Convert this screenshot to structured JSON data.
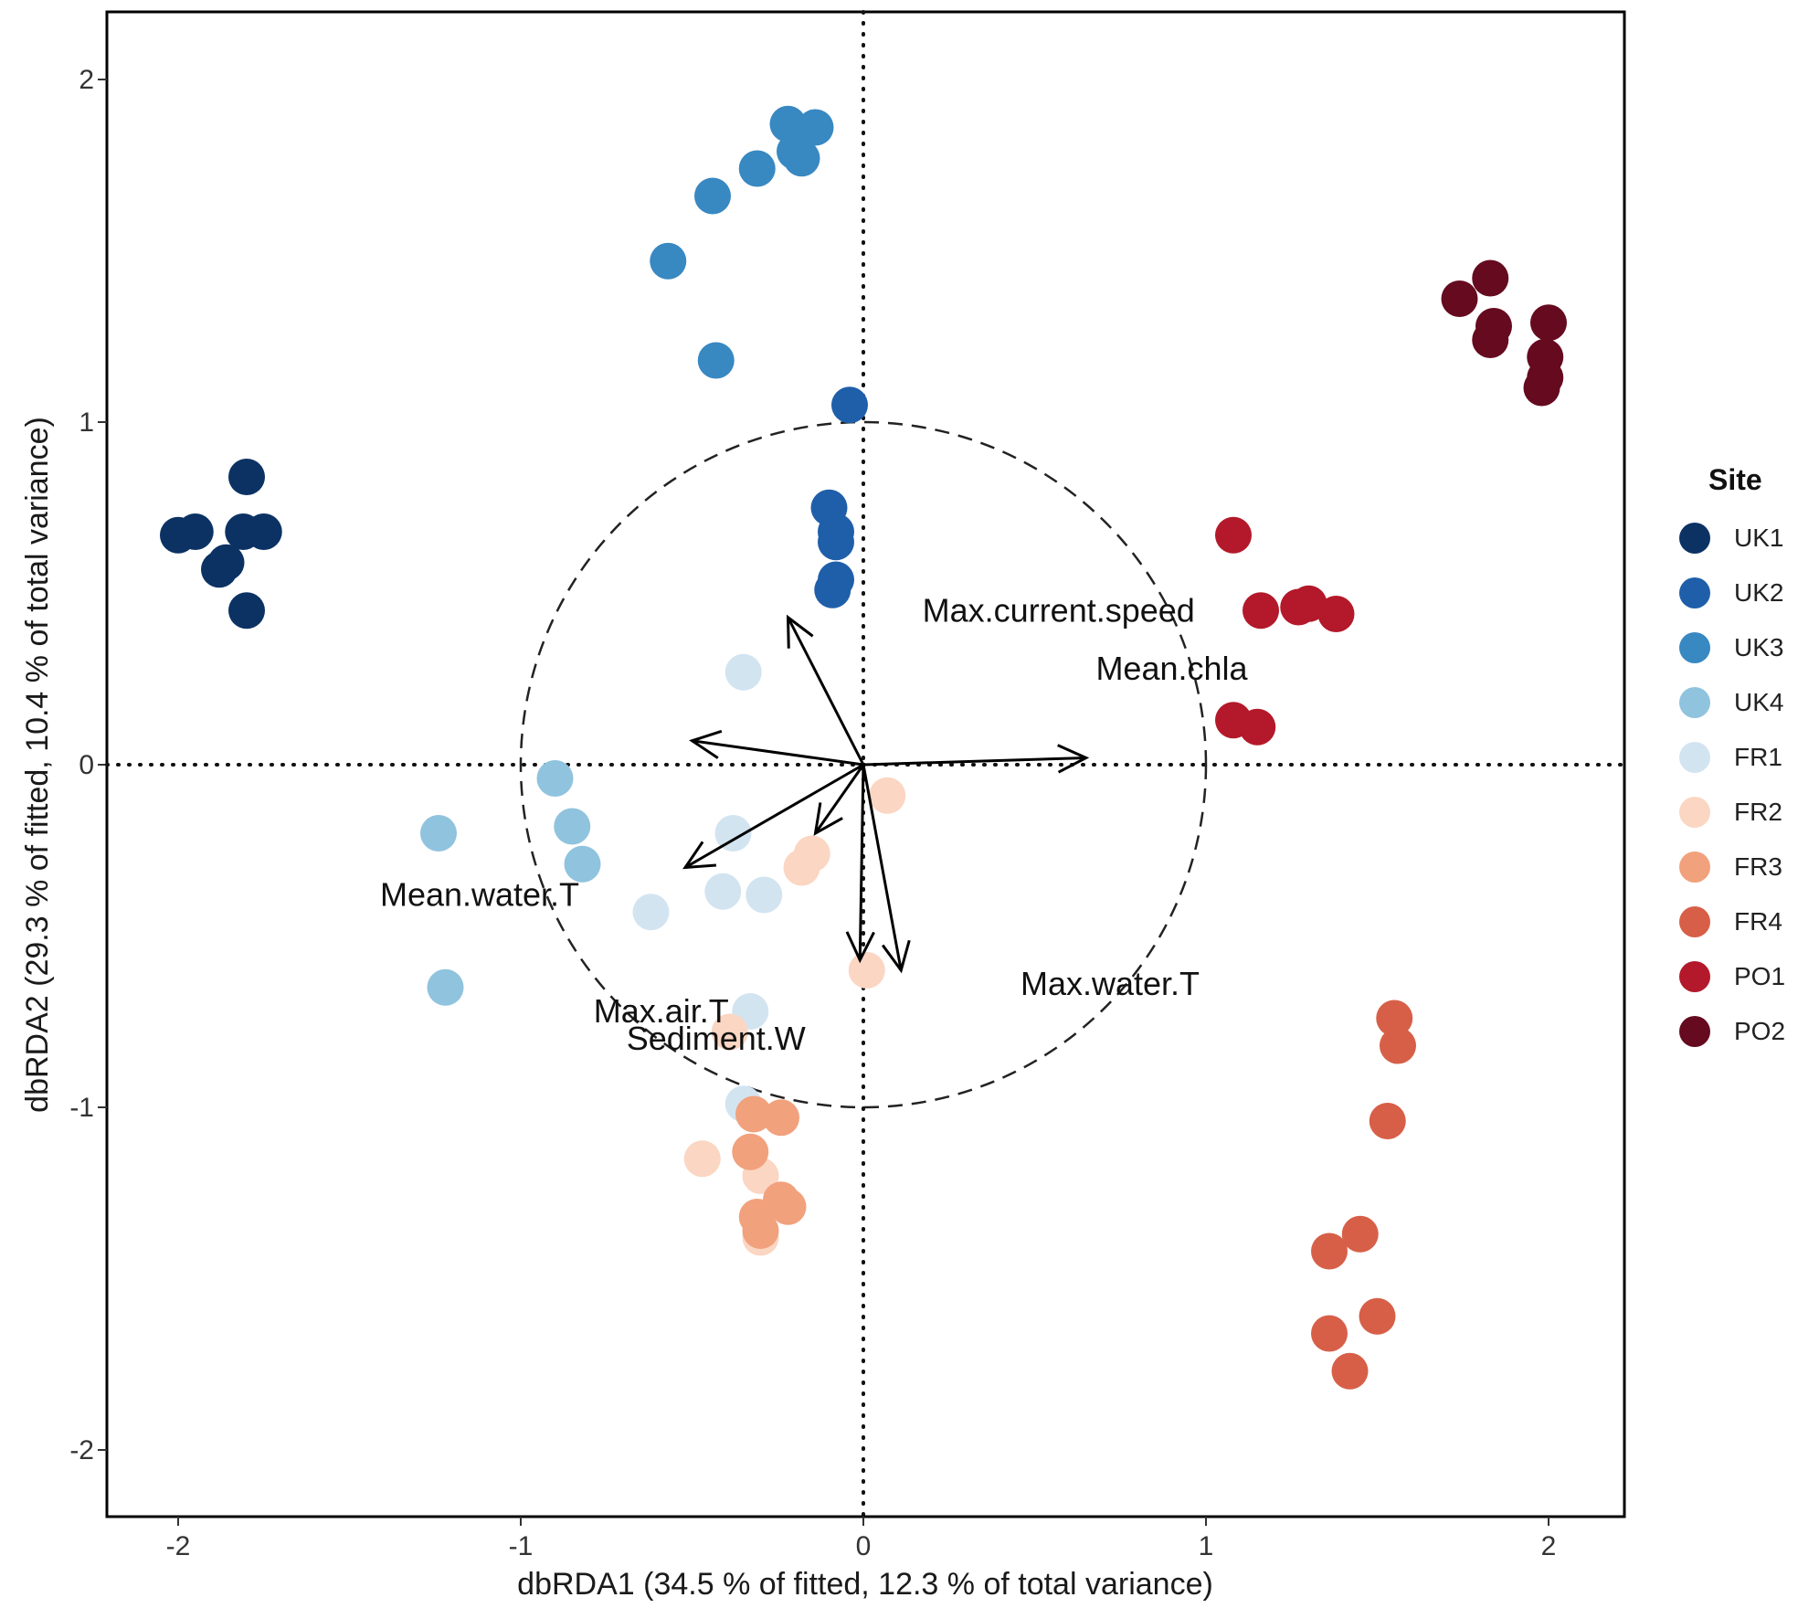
{
  "chart_data": {
    "type": "scatter",
    "xlabel": "dbRDA1 (34.5 % of fitted, 12.3 % of total variance)",
    "ylabel": "dbRDA2 (29.3 % of fitted, 10.4 % of total variance)",
    "xlim": [
      -2.2,
      2.2
    ],
    "ylim": [
      -2.2,
      2.2
    ],
    "xticks": [
      -2,
      -1,
      0,
      1,
      2
    ],
    "yticks": [
      -2,
      -1,
      0,
      1,
      2
    ],
    "tick_labels_x": [
      "-2",
      "-1",
      "0",
      "1",
      "2"
    ],
    "tick_labels_y": [
      "-2",
      "-1",
      "0",
      "1",
      "2"
    ],
    "reference_lines": {
      "x": 0,
      "y": 0,
      "style": "dotted"
    },
    "equilibrium_circle_radius": 1,
    "legend": {
      "title": "Site",
      "placement": "right"
    },
    "series": [
      {
        "name": "UK1",
        "color": "#0b3263",
        "points": [
          [
            -2.0,
            0.67
          ],
          [
            -1.95,
            0.68
          ],
          [
            -1.8,
            0.84
          ],
          [
            -1.81,
            0.68
          ],
          [
            -1.75,
            0.68
          ],
          [
            -1.86,
            0.59
          ],
          [
            -1.88,
            0.57
          ],
          [
            -1.8,
            0.45
          ]
        ]
      },
      {
        "name": "UK2",
        "color": "#1f5fa9",
        "points": [
          [
            -0.04,
            1.05
          ],
          [
            -0.1,
            0.75
          ],
          [
            -0.08,
            0.68
          ],
          [
            -0.08,
            0.65
          ],
          [
            -0.08,
            0.54
          ],
          [
            -0.09,
            0.51
          ]
        ]
      },
      {
        "name": "UK3",
        "color": "#3888c2",
        "points": [
          [
            -0.22,
            1.87
          ],
          [
            -0.14,
            1.86
          ],
          [
            -0.2,
            1.79
          ],
          [
            -0.18,
            1.77
          ],
          [
            -0.31,
            1.74
          ],
          [
            -0.44,
            1.66
          ],
          [
            -0.57,
            1.47
          ],
          [
            -0.43,
            1.18
          ]
        ]
      },
      {
        "name": "UK4",
        "color": "#90c3de",
        "points": [
          [
            -0.9,
            -0.04
          ],
          [
            -0.85,
            -0.18
          ],
          [
            -0.82,
            -0.29
          ],
          [
            -1.24,
            -0.2
          ],
          [
            -1.22,
            -0.65
          ]
        ]
      },
      {
        "name": "FR1",
        "color": "#d3e4f1",
        "points": [
          [
            -0.35,
            0.27
          ],
          [
            -0.38,
            -0.2
          ],
          [
            -0.41,
            -0.37
          ],
          [
            -0.29,
            -0.38
          ],
          [
            -0.62,
            -0.43
          ],
          [
            -0.33,
            -0.72
          ],
          [
            -0.35,
            -0.99
          ]
        ]
      },
      {
        "name": "FR2",
        "color": "#fbd6c3",
        "points": [
          [
            0.07,
            -0.09
          ],
          [
            -0.15,
            -0.26
          ],
          [
            -0.18,
            -0.3
          ],
          [
            0.01,
            -0.6
          ],
          [
            -0.39,
            -0.78
          ],
          [
            -0.47,
            -1.15
          ],
          [
            -0.3,
            -1.2
          ],
          [
            -0.3,
            -1.38
          ]
        ]
      },
      {
        "name": "FR3",
        "color": "#f1a17c",
        "points": [
          [
            -0.32,
            -1.02
          ],
          [
            -0.24,
            -1.03
          ],
          [
            -0.33,
            -1.13
          ],
          [
            -0.31,
            -1.32
          ],
          [
            -0.24,
            -1.27
          ],
          [
            -0.22,
            -1.29
          ],
          [
            -0.3,
            -1.36
          ]
        ]
      },
      {
        "name": "FR4",
        "color": "#d75f48",
        "points": [
          [
            1.55,
            -0.74
          ],
          [
            1.56,
            -0.82
          ],
          [
            1.53,
            -1.04
          ],
          [
            1.45,
            -1.37
          ],
          [
            1.36,
            -1.42
          ],
          [
            1.5,
            -1.61
          ],
          [
            1.36,
            -1.66
          ],
          [
            1.42,
            -1.77
          ]
        ]
      },
      {
        "name": "PO1",
        "color": "#b3192a",
        "points": [
          [
            1.08,
            0.67
          ],
          [
            1.16,
            0.45
          ],
          [
            1.27,
            0.46
          ],
          [
            1.3,
            0.47
          ],
          [
            1.38,
            0.44
          ],
          [
            1.08,
            0.13
          ],
          [
            1.15,
            0.11
          ]
        ]
      },
      {
        "name": "PO2",
        "color": "#650a1f",
        "points": [
          [
            1.74,
            1.36
          ],
          [
            1.83,
            1.42
          ],
          [
            1.84,
            1.28
          ],
          [
            1.83,
            1.24
          ],
          [
            2.0,
            1.29
          ],
          [
            1.99,
            1.19
          ],
          [
            1.99,
            1.13
          ],
          [
            1.98,
            1.1
          ]
        ]
      }
    ],
    "vectors": [
      {
        "name": "Max.current.speed",
        "end": [
          -0.22,
          0.43
        ],
        "label_at": [
          0.57,
          0.45
        ]
      },
      {
        "name": "Mean.chla",
        "end": [
          0.65,
          0.02
        ],
        "label_at": [
          0.9,
          0.28
        ]
      },
      {
        "name": "Mean.water.T",
        "end": [
          -0.5,
          0.07
        ],
        "label_at": [
          -1.12,
          -0.38
        ]
      },
      {
        "name": "Max.air.T",
        "end": [
          -0.52,
          -0.3
        ],
        "label_at": [
          -0.59,
          -0.72
        ]
      },
      {
        "name": "Sediment.W",
        "end": [
          -0.14,
          -0.2
        ],
        "label_at": [
          -0.43,
          -0.8
        ]
      },
      {
        "name": "Max.water.T",
        "end": [
          0.11,
          -0.6
        ],
        "label_at": [
          0.72,
          -0.64
        ]
      },
      {
        "name": "",
        "end": [
          -0.01,
          -0.57
        ]
      }
    ]
  }
}
